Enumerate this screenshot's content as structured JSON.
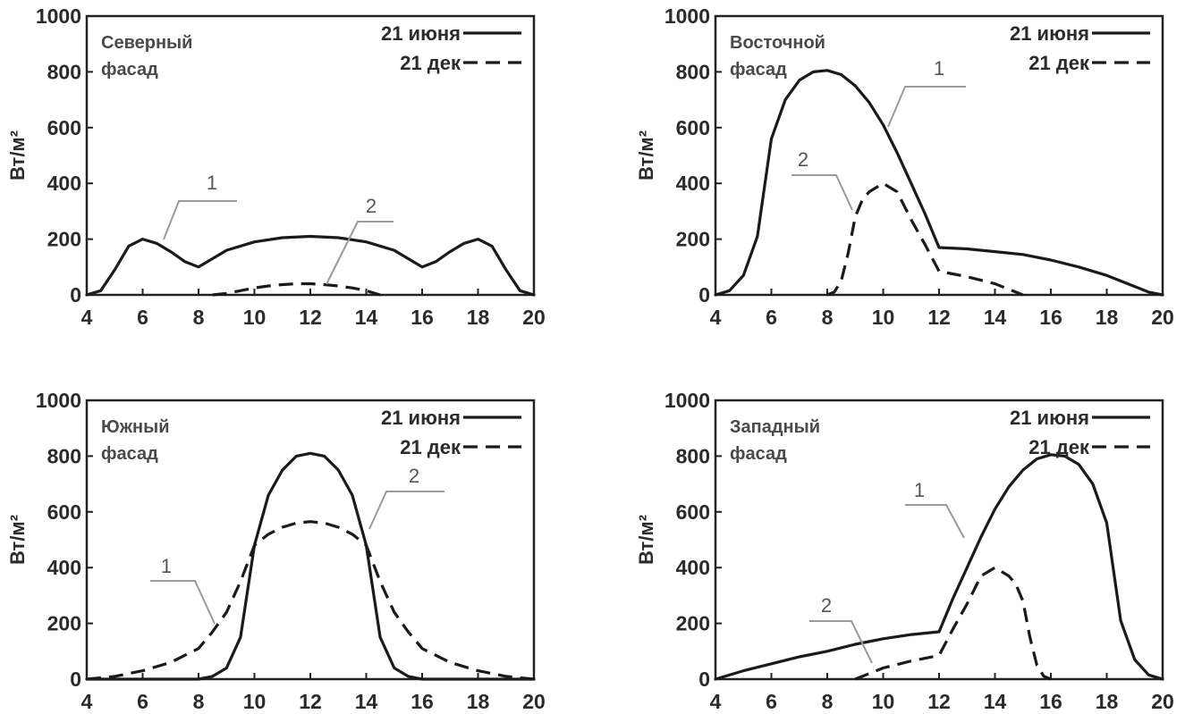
{
  "colors": {
    "line": "#1a1a1a",
    "callout": "#9a9a9a",
    "axis": "#222222"
  },
  "chart_data": [
    {
      "type": "line",
      "title": "Северный фасад",
      "title_lines": [
        "Северный",
        "фасад"
      ],
      "ylabel": "Вт/м²",
      "xlim": [
        4,
        20
      ],
      "ylim": [
        0,
        1000
      ],
      "xticks": [
        4,
        6,
        8,
        10,
        12,
        14,
        16,
        18,
        20
      ],
      "yticks": [
        0,
        200,
        400,
        600,
        800,
        1000
      ],
      "grid": false,
      "legend_position": "top-right",
      "series": [
        {
          "name": "21 июня",
          "style": "solid",
          "callout": "1",
          "x": [
            4,
            4.5,
            5,
            5.5,
            6,
            6.5,
            7,
            7.5,
            8,
            9,
            10,
            11,
            12,
            13,
            14,
            15,
            16,
            16.5,
            17,
            17.5,
            18,
            18.5,
            19,
            19.5,
            20
          ],
          "y": [
            0,
            15,
            90,
            175,
            200,
            185,
            155,
            120,
            100,
            160,
            190,
            205,
            210,
            205,
            190,
            160,
            100,
            120,
            155,
            185,
            200,
            175,
            90,
            15,
            0
          ]
        },
        {
          "name": "21 дек",
          "style": "dashed",
          "callout": "2",
          "x": [
            8.5,
            9,
            9.5,
            10,
            10.5,
            11,
            11.5,
            12,
            12.5,
            13,
            13.5,
            14,
            14.5
          ],
          "y": [
            0,
            5,
            15,
            25,
            32,
            37,
            40,
            40,
            37,
            32,
            25,
            15,
            0
          ]
        }
      ]
    },
    {
      "type": "line",
      "title": "Восточной фасад",
      "title_lines": [
        "Восточной",
        "фасад"
      ],
      "ylabel": "Вт/м²",
      "xlim": [
        4,
        20
      ],
      "ylim": [
        0,
        1000
      ],
      "xticks": [
        4,
        6,
        8,
        10,
        12,
        14,
        16,
        18,
        20
      ],
      "yticks": [
        0,
        200,
        400,
        600,
        800,
        1000
      ],
      "grid": false,
      "legend_position": "top-right",
      "series": [
        {
          "name": "21 июня",
          "style": "solid",
          "callout": "1",
          "x": [
            4,
            4.5,
            5,
            5.5,
            6,
            6.5,
            7,
            7.5,
            8,
            8.5,
            9,
            9.5,
            10,
            10.5,
            11,
            11.5,
            12,
            13,
            14,
            15,
            16,
            17,
            18,
            19,
            19.5,
            20
          ],
          "y": [
            0,
            15,
            70,
            210,
            560,
            700,
            770,
            800,
            805,
            790,
            750,
            690,
            610,
            510,
            400,
            290,
            170,
            165,
            155,
            145,
            125,
            100,
            70,
            30,
            10,
            0
          ]
        },
        {
          "name": "21 дек",
          "style": "dashed",
          "callout": "2",
          "x": [
            8,
            8.25,
            8.5,
            8.75,
            9,
            9.25,
            9.5,
            10,
            10.5,
            11,
            11.5,
            12,
            13,
            14,
            15
          ],
          "y": [
            0,
            10,
            50,
            150,
            280,
            340,
            370,
            400,
            370,
            270,
            180,
            85,
            65,
            40,
            0
          ]
        }
      ]
    },
    {
      "type": "line",
      "title": "Южный фасад",
      "title_lines": [
        "Южный",
        "фасад"
      ],
      "ylabel": "Вт/м²",
      "xlim": [
        4,
        20
      ],
      "ylim": [
        0,
        1000
      ],
      "xticks": [
        4,
        6,
        8,
        10,
        12,
        14,
        16,
        18,
        20
      ],
      "yticks": [
        0,
        200,
        400,
        600,
        800,
        1000
      ],
      "grid": false,
      "legend_position": "top-right",
      "series": [
        {
          "name": "21 июня",
          "style": "solid",
          "callout": "1",
          "x": [
            4,
            8,
            8.5,
            9,
            9.5,
            10,
            10.5,
            11,
            11.5,
            12,
            12.5,
            13,
            13.5,
            14,
            14.5,
            15,
            15.5,
            16,
            20
          ],
          "y": [
            0,
            0,
            10,
            40,
            150,
            480,
            660,
            750,
            800,
            810,
            800,
            750,
            660,
            480,
            150,
            40,
            10,
            0,
            0
          ]
        },
        {
          "name": "21 дек",
          "style": "dashed",
          "callout": "2",
          "x": [
            4,
            5,
            6,
            7,
            8,
            8.5,
            9,
            9.5,
            10,
            10.5,
            11,
            11.5,
            12,
            12.5,
            13,
            13.5,
            14,
            14.5,
            15,
            15.5,
            16,
            17,
            18,
            19,
            20
          ],
          "y": [
            0,
            10,
            30,
            60,
            110,
            170,
            240,
            350,
            480,
            520,
            545,
            560,
            565,
            560,
            545,
            520,
            480,
            350,
            240,
            170,
            110,
            60,
            30,
            10,
            0
          ]
        }
      ]
    },
    {
      "type": "line",
      "title": "Западный фасад",
      "title_lines": [
        "Западный",
        "фасад"
      ],
      "ylabel": "Вт/м²",
      "xlim": [
        4,
        20
      ],
      "ylim": [
        0,
        1000
      ],
      "xticks": [
        4,
        6,
        8,
        10,
        12,
        14,
        16,
        18,
        20
      ],
      "yticks": [
        0,
        200,
        400,
        600,
        800,
        1000
      ],
      "grid": false,
      "legend_position": "top-right",
      "series": [
        {
          "name": "21 июня",
          "style": "solid",
          "callout": "1",
          "x": [
            4,
            5,
            6,
            7,
            8,
            9,
            10,
            11,
            12,
            12.5,
            13,
            13.5,
            14,
            14.5,
            15,
            15.5,
            16,
            16.5,
            17,
            17.5,
            18,
            18.5,
            19,
            19.5,
            20
          ],
          "y": [
            0,
            30,
            55,
            80,
            100,
            125,
            145,
            160,
            170,
            290,
            400,
            510,
            610,
            690,
            750,
            790,
            805,
            800,
            770,
            700,
            560,
            210,
            70,
            15,
            0
          ]
        },
        {
          "name": "21 дек",
          "style": "dashed",
          "callout": "2",
          "x": [
            9,
            10,
            11,
            12,
            12.5,
            13,
            13.5,
            14,
            14.5,
            14.75,
            15,
            15.25,
            15.5,
            15.75,
            16
          ],
          "y": [
            0,
            40,
            65,
            85,
            180,
            270,
            370,
            400,
            370,
            340,
            280,
            150,
            50,
            10,
            0
          ]
        }
      ]
    }
  ]
}
